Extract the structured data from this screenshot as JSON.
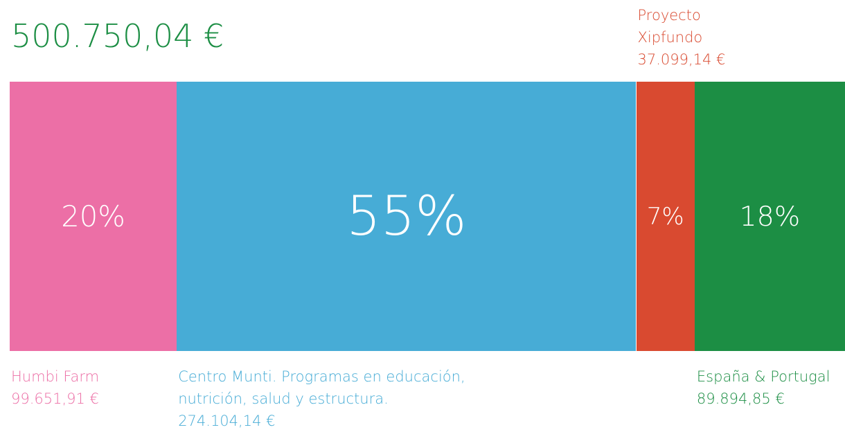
{
  "chart_data": {
    "type": "stacked_bar",
    "title": "500.750,04 €",
    "title_color": "#1c8e44",
    "categories": [
      "Humbi Farm",
      "Centro Munti. Programas en educación, nutrición, salud y estructura.",
      "Proyecto Xipfundo",
      "España & Portugal"
    ],
    "amount_labels": [
      "99.651,91 €",
      "274.104,14 €",
      "37.099,14 €",
      "89.894,85 €"
    ],
    "values": [
      20,
      55,
      7,
      18
    ],
    "value_labels": [
      "20%",
      "55%",
      "7%",
      "18%"
    ],
    "colors": [
      "#ec6fa6",
      "#47acd6",
      "#d94a30",
      "#1c8e44"
    ],
    "xlim": [
      0,
      100
    ]
  }
}
